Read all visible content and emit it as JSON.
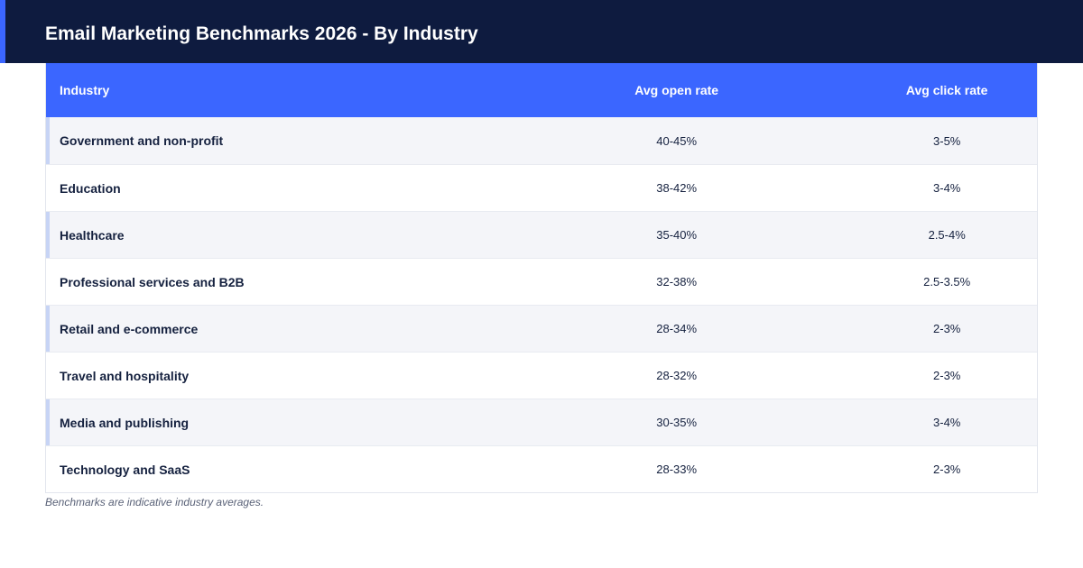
{
  "page": {
    "title": "Email Marketing Benchmarks 2026 - By Industry",
    "footnote": "Benchmarks are indicative industry averages."
  },
  "colors": {
    "header_bg": "#0e1b3f",
    "accent": "#3b66ff",
    "row_shade": "#f4f5f9",
    "row_marker": "#c7d4f5"
  },
  "chart_data": {
    "type": "table",
    "title": "Email Marketing Benchmarks 2026 - By Industry",
    "columns": [
      "Industry",
      "Avg open rate",
      "Avg click rate"
    ],
    "rows": [
      {
        "industry": "Government and non-profit",
        "open": "40-45%",
        "click": "3-5%"
      },
      {
        "industry": "Education",
        "open": "38-42%",
        "click": "3-4%"
      },
      {
        "industry": "Healthcare",
        "open": "35-40%",
        "click": "2.5-4%"
      },
      {
        "industry": "Professional services and B2B",
        "open": "32-38%",
        "click": "2.5-3.5%"
      },
      {
        "industry": "Retail and e-commerce",
        "open": "28-34%",
        "click": "2-3%"
      },
      {
        "industry": "Travel and hospitality",
        "open": "28-32%",
        "click": "2-3%"
      },
      {
        "industry": "Media and publishing",
        "open": "30-35%",
        "click": "3-4%"
      },
      {
        "industry": "Technology and SaaS",
        "open": "28-33%",
        "click": "2-3%"
      }
    ]
  }
}
